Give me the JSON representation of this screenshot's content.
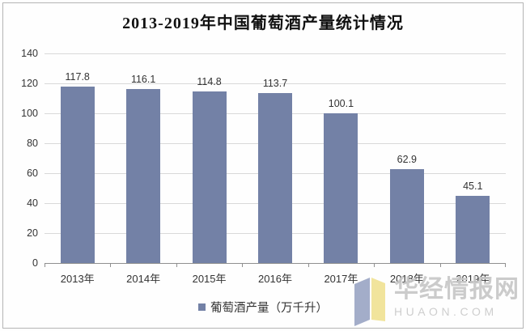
{
  "title": "2013-2019年中国葡萄酒产量统计情况",
  "chart_data": {
    "type": "bar",
    "categories": [
      "2013年",
      "2014年",
      "2015年",
      "2016年",
      "2017年",
      "2018年",
      "2019年"
    ],
    "values": [
      117.8,
      116.1,
      114.8,
      113.7,
      100.1,
      62.9,
      45.1
    ],
    "series_name": "葡萄酒产量（万千升）",
    "title": "2013-2019年中国葡萄酒产量统计情况",
    "xlabel": "",
    "ylabel": "",
    "ylim": [
      0,
      140
    ],
    "yticks": [
      0,
      20,
      40,
      60,
      80,
      100,
      120,
      140
    ],
    "grid": true,
    "legend_position": "bottom",
    "bar_color": "#7381A6",
    "value_labels_shown": true
  },
  "legend": {
    "label": "葡萄酒产量（万千升）",
    "marker_color": "#7381A6"
  },
  "watermark": {
    "cn": "华经情报网",
    "en": "HUAON.COM",
    "logo_left_color": "#a3adc9",
    "logo_right_color": "#f1e49c"
  },
  "colors": {
    "bar": "#7381A6",
    "gridline": "#d9d9d9",
    "axis": "#8f8f8f",
    "text": "#333333",
    "watermark_text": "#c7c7c7"
  }
}
